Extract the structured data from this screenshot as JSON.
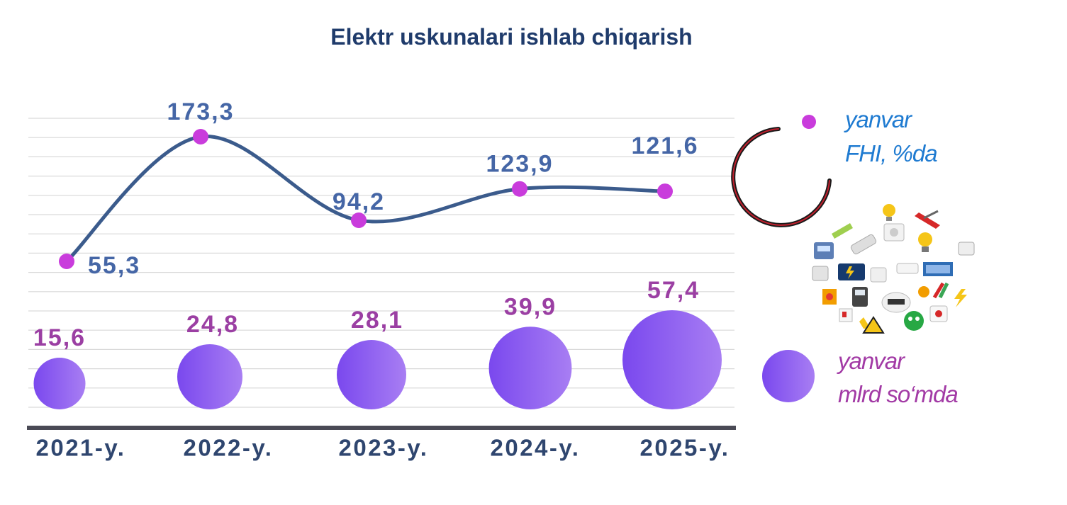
{
  "title": "Elektr uskunalari ishlab chiqarish",
  "legend": {
    "line_label_1": "yanvar",
    "line_label_2": "FHI, %da",
    "bubble_label_1": "yanvar",
    "bubble_label_2": "mlrd so‘mda"
  },
  "colors": {
    "line": "#3b5b8c",
    "line_marker": "#c93cdc",
    "line_label": "#4566a6",
    "bubble_label": "#9b3fa3",
    "bubble_start": "#7a48ee",
    "bubble_end": "#a87ef3",
    "axis": "#4a4a55",
    "category_label": "#2f466f",
    "title": "#1f3b6b"
  },
  "chart_data": {
    "type": "line+bubble",
    "title": "Elektr uskunalari ishlab chiqarish",
    "categories": [
      "2021-y.",
      "2022-y.",
      "2023-y.",
      "2024-y.",
      "2025-y."
    ],
    "series": [
      {
        "name": "yanvar FHI, %da",
        "type": "line",
        "values": [
          55.3,
          173.3,
          94.2,
          123.9,
          121.6
        ],
        "labels": [
          "55,3",
          "173,3",
          "94,2",
          "123,9",
          "121,6"
        ]
      },
      {
        "name": "yanvar mlrd so‘mda",
        "type": "bubble",
        "values": [
          15.6,
          24.8,
          28.1,
          39.9,
          57.4
        ],
        "labels": [
          "15,6",
          "24,8",
          "28,1",
          "39,9",
          "57,4"
        ]
      }
    ],
    "grid": true,
    "legend_position": "right"
  }
}
